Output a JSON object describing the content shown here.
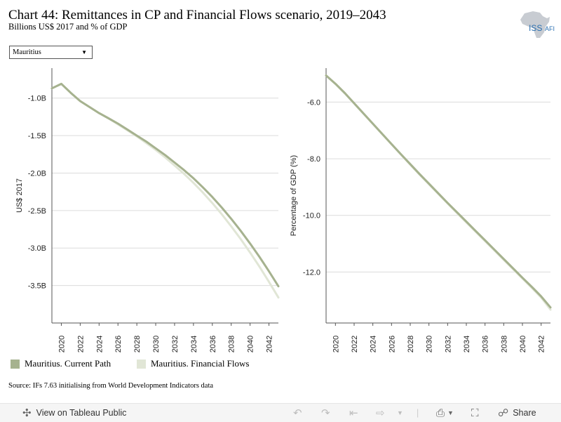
{
  "header": {
    "title": "Chart 44: Remittances in CP and Financial Flows scenario, 2019–2043",
    "subtitle": "Billions US$ 2017 and % of GDP",
    "logo_text": "ISS",
    "logo_text_suffix": "AFI"
  },
  "filter": {
    "selected": "Mauritius"
  },
  "legend": [
    {
      "label": "Mauritius. Current Path",
      "color": "#a6b28f"
    },
    {
      "label": "Mauritius. Financial Flows",
      "color": "#e1e6d6"
    }
  ],
  "source": "Source: IFs 7.63 initialising from World Development Indicators data",
  "toolbar": {
    "view_label": "View on Tableau Public",
    "share_label": "Share"
  },
  "chart_data": [
    {
      "type": "line",
      "ylabel": "US$ 2017",
      "xlim": [
        2019,
        2043
      ],
      "ylim": [
        -4.0,
        -0.6
      ],
      "x_ticks": [
        2020,
        2022,
        2024,
        2026,
        2028,
        2030,
        2032,
        2034,
        2036,
        2038,
        2040,
        2042
      ],
      "y_ticks": [
        -1.0,
        -1.5,
        -2.0,
        -2.5,
        -3.0,
        -3.5
      ],
      "y_tick_labels": [
        "-1.0B",
        "-1.5B",
        "-2.0B",
        "-2.5B",
        "-3.0B",
        "-3.5B"
      ],
      "grid": true,
      "x": [
        2019,
        2020,
        2021,
        2022,
        2023,
        2024,
        2025,
        2026,
        2027,
        2028,
        2029,
        2030,
        2031,
        2032,
        2033,
        2034,
        2035,
        2036,
        2037,
        2038,
        2039,
        2040,
        2041,
        2042,
        2043
      ],
      "series": [
        {
          "name": "Mauritius. Current Path",
          "color": "#a6b28f",
          "values": [
            -0.87,
            -0.81,
            -0.93,
            -1.04,
            -1.12,
            -1.2,
            -1.27,
            -1.34,
            -1.42,
            -1.5,
            -1.58,
            -1.67,
            -1.76,
            -1.86,
            -1.96,
            -2.07,
            -2.19,
            -2.32,
            -2.46,
            -2.61,
            -2.77,
            -2.94,
            -3.12,
            -3.31,
            -3.51
          ]
        },
        {
          "name": "Mauritius. Financial Flows",
          "color": "#e1e6d6",
          "values": [
            -0.87,
            -0.81,
            -0.93,
            -1.04,
            -1.12,
            -1.2,
            -1.27,
            -1.35,
            -1.43,
            -1.51,
            -1.6,
            -1.69,
            -1.79,
            -1.9,
            -2.01,
            -2.13,
            -2.26,
            -2.4,
            -2.55,
            -2.71,
            -2.88,
            -3.06,
            -3.25,
            -3.45,
            -3.66
          ]
        }
      ]
    },
    {
      "type": "line",
      "ylabel": "Percentage of GDP (%)",
      "xlim": [
        2019,
        2043
      ],
      "ylim": [
        -13.8,
        -4.8
      ],
      "x_ticks": [
        2020,
        2022,
        2024,
        2026,
        2028,
        2030,
        2032,
        2034,
        2036,
        2038,
        2040,
        2042
      ],
      "y_ticks": [
        -6.0,
        -8.0,
        -10.0,
        -12.0
      ],
      "y_tick_labels": [
        "-6.0",
        "-8.0",
        "-10.0",
        "-12.0"
      ],
      "grid": true,
      "x": [
        2019,
        2020,
        2021,
        2022,
        2023,
        2024,
        2025,
        2026,
        2027,
        2028,
        2029,
        2030,
        2031,
        2032,
        2033,
        2034,
        2035,
        2036,
        2037,
        2038,
        2039,
        2040,
        2041,
        2042,
        2043
      ],
      "series": [
        {
          "name": "Mauritius. Current Path",
          "color": "#a6b28f",
          "values": [
            -5.06,
            -5.35,
            -5.68,
            -6.04,
            -6.4,
            -6.76,
            -7.12,
            -7.48,
            -7.84,
            -8.19,
            -8.54,
            -8.88,
            -9.22,
            -9.56,
            -9.89,
            -10.22,
            -10.55,
            -10.88,
            -11.21,
            -11.54,
            -11.87,
            -12.2,
            -12.52,
            -12.86,
            -13.25
          ]
        },
        {
          "name": "Mauritius. Financial Flows",
          "color": "#e1e6d6",
          "values": [
            -5.06,
            -5.36,
            -5.69,
            -6.05,
            -6.41,
            -6.77,
            -7.13,
            -7.49,
            -7.85,
            -8.21,
            -8.56,
            -8.9,
            -9.24,
            -9.58,
            -9.92,
            -10.25,
            -10.58,
            -10.91,
            -11.24,
            -11.57,
            -11.9,
            -12.23,
            -12.56,
            -12.9,
            -13.33
          ]
        }
      ]
    }
  ]
}
